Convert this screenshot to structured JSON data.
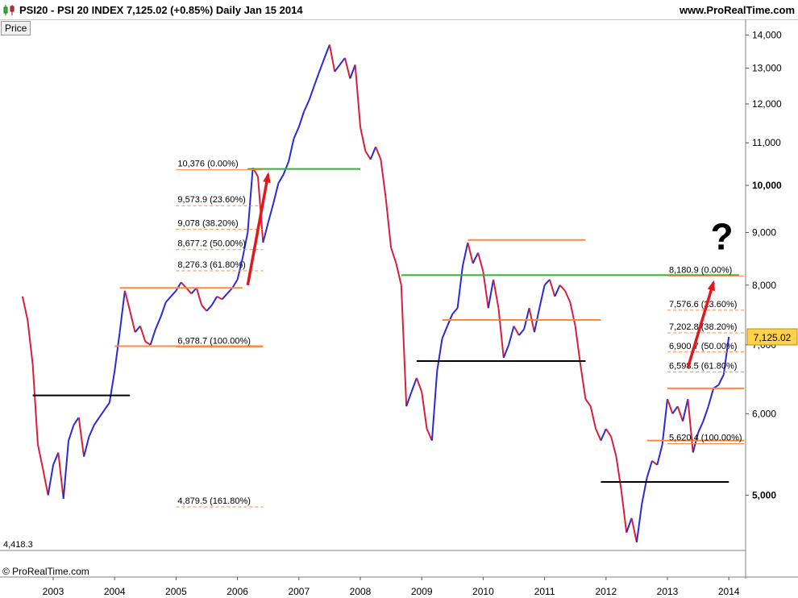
{
  "header": {
    "title": "PSI20 - PSI 20 INDEX    7,125.02 (+0.85%)    Daily   Jan 15 2014",
    "source": "www.ProRealTime.com",
    "icon": "candlestick-icon"
  },
  "price_tab": "Price",
  "footer": {
    "copyright": "© ProRealTime.com"
  },
  "colors": {
    "up": "#2a2ad8",
    "down": "#d81e3c",
    "fib": "#ff8a3d",
    "support": "#000000",
    "green_level": "#2fb52f",
    "arrow": "#e01a1a",
    "last_price_bg": "#ffd24a"
  },
  "chart_data": {
    "type": "line",
    "title": "PSI20 - PSI 20 INDEX",
    "xlabel": "",
    "ylabel": "",
    "y_scale": "log",
    "ylim": [
      4418.3,
      14500
    ],
    "x_ticks": [
      "2003",
      "2004",
      "2005",
      "2006",
      "2007",
      "2008",
      "2009",
      "2010",
      "2011",
      "2012",
      "2013",
      "2014"
    ],
    "y_ticks": [
      "14,000",
      "13,000",
      "12,000",
      "11,000",
      "10,000",
      "9,000",
      "8,000",
      "7,000",
      "6,000",
      "5,000"
    ],
    "bold_ticks": [
      "10,000",
      "5,000"
    ],
    "min_label": "4,418.3",
    "last_value": "7,125.02",
    "series": [
      {
        "values": [
          [
            "2002-07",
            7800
          ],
          [
            "2002-08",
            7400
          ],
          [
            "2002-09",
            6700
          ],
          [
            "2002-10",
            5600
          ],
          [
            "2002-11",
            5300
          ],
          [
            "2002-12",
            5000
          ],
          [
            "2003-01",
            5350
          ],
          [
            "2003-02",
            5500
          ],
          [
            "2003-03",
            4960
          ],
          [
            "2003-04",
            5650
          ],
          [
            "2003-05",
            5850
          ],
          [
            "2003-06",
            5950
          ],
          [
            "2003-07",
            5450
          ],
          [
            "2003-08",
            5700
          ],
          [
            "2003-09",
            5850
          ],
          [
            "2003-10",
            5950
          ],
          [
            "2003-11",
            6050
          ],
          [
            "2003-12",
            6150
          ],
          [
            "2004-01",
            6600
          ],
          [
            "2004-02",
            7200
          ],
          [
            "2004-03",
            7900
          ],
          [
            "2004-04",
            7550
          ],
          [
            "2004-05",
            7200
          ],
          [
            "2004-06",
            7300
          ],
          [
            "2004-07",
            7050
          ],
          [
            "2004-08",
            7000
          ],
          [
            "2004-09",
            7250
          ],
          [
            "2004-10",
            7450
          ],
          [
            "2004-11",
            7700
          ],
          [
            "2004-12",
            7800
          ],
          [
            "2005-01",
            7900
          ],
          [
            "2005-02",
            8050
          ],
          [
            "2005-03",
            7950
          ],
          [
            "2005-04",
            7850
          ],
          [
            "2005-05",
            7950
          ],
          [
            "2005-06",
            7650
          ],
          [
            "2005-07",
            7550
          ],
          [
            "2005-08",
            7650
          ],
          [
            "2005-09",
            7800
          ],
          [
            "2005-10",
            7750
          ],
          [
            "2005-11",
            7850
          ],
          [
            "2005-12",
            7950
          ],
          [
            "2006-01",
            8100
          ],
          [
            "2006-02",
            8500
          ],
          [
            "2006-03",
            9000
          ],
          [
            "2006-04",
            10400
          ],
          [
            "2006-05",
            10200
          ],
          [
            "2006-06",
            8800
          ],
          [
            "2006-07",
            9200
          ],
          [
            "2006-08",
            9600
          ],
          [
            "2006-09",
            10050
          ],
          [
            "2006-10",
            10250
          ],
          [
            "2006-11",
            10550
          ],
          [
            "2006-12",
            11100
          ],
          [
            "2007-01",
            11400
          ],
          [
            "2007-02",
            11800
          ],
          [
            "2007-03",
            12100
          ],
          [
            "2007-04",
            12500
          ],
          [
            "2007-05",
            12900
          ],
          [
            "2007-06",
            13300
          ],
          [
            "2007-07",
            13700
          ],
          [
            "2007-08",
            12900
          ],
          [
            "2007-09",
            13100
          ],
          [
            "2007-10",
            13300
          ],
          [
            "2007-11",
            12700
          ],
          [
            "2007-12",
            13100
          ],
          [
            "2008-01",
            11400
          ],
          [
            "2008-02",
            10800
          ],
          [
            "2008-03",
            10600
          ],
          [
            "2008-04",
            10900
          ],
          [
            "2008-05",
            10600
          ],
          [
            "2008-06",
            9700
          ],
          [
            "2008-07",
            8700
          ],
          [
            "2008-08",
            8400
          ],
          [
            "2008-09",
            8000
          ],
          [
            "2008-10",
            6100
          ],
          [
            "2008-11",
            6300
          ],
          [
            "2008-12",
            6500
          ],
          [
            "2009-01",
            6300
          ],
          [
            "2009-02",
            5800
          ],
          [
            "2009-03",
            5650
          ],
          [
            "2009-04",
            6600
          ],
          [
            "2009-05",
            7100
          ],
          [
            "2009-06",
            7300
          ],
          [
            "2009-07",
            7500
          ],
          [
            "2009-08",
            7600
          ],
          [
            "2009-09",
            8350
          ],
          [
            "2009-10",
            8800
          ],
          [
            "2009-11",
            8400
          ],
          [
            "2009-12",
            8600
          ],
          [
            "2010-01",
            8250
          ],
          [
            "2010-02",
            7600
          ],
          [
            "2010-03",
            8100
          ],
          [
            "2010-04",
            7600
          ],
          [
            "2010-05",
            6800
          ],
          [
            "2010-06",
            7000
          ],
          [
            "2010-07",
            7300
          ],
          [
            "2010-08",
            7150
          ],
          [
            "2010-09",
            7250
          ],
          [
            "2010-10",
            7600
          ],
          [
            "2010-11",
            7200
          ],
          [
            "2010-12",
            7600
          ],
          [
            "2011-01",
            8000
          ],
          [
            "2011-02",
            8100
          ],
          [
            "2011-03",
            7800
          ],
          [
            "2011-04",
            8000
          ],
          [
            "2011-05",
            7900
          ],
          [
            "2011-06",
            7700
          ],
          [
            "2011-07",
            7300
          ],
          [
            "2011-08",
            6700
          ],
          [
            "2011-09",
            6200
          ],
          [
            "2011-10",
            6100
          ],
          [
            "2011-11",
            5800
          ],
          [
            "2011-12",
            5650
          ],
          [
            "2012-01",
            5800
          ],
          [
            "2012-02",
            5700
          ],
          [
            "2012-03",
            5450
          ],
          [
            "2012-04",
            5050
          ],
          [
            "2012-05",
            4600
          ],
          [
            "2012-06",
            4750
          ],
          [
            "2012-07",
            4500
          ],
          [
            "2012-08",
            4900
          ],
          [
            "2012-09",
            5200
          ],
          [
            "2012-10",
            5400
          ],
          [
            "2012-11",
            5350
          ],
          [
            "2012-12",
            5600
          ],
          [
            "2013-01",
            6200
          ],
          [
            "2013-02",
            6000
          ],
          [
            "2013-03",
            6100
          ],
          [
            "2013-04",
            5900
          ],
          [
            "2013-05",
            6200
          ],
          [
            "2013-06",
            5500
          ],
          [
            "2013-07",
            5750
          ],
          [
            "2013-08",
            5900
          ],
          [
            "2013-09",
            6100
          ],
          [
            "2013-10",
            6350
          ],
          [
            "2013-11",
            6400
          ],
          [
            "2013-12",
            6550
          ],
          [
            "2014-01",
            7125.02
          ]
        ]
      }
    ],
    "hlines": [
      {
        "color": "support",
        "from": "2002-09",
        "to": "2004-04",
        "y": 6250
      },
      {
        "color": "fib",
        "from": "2004-02",
        "to": "2006-02",
        "y": 7950
      },
      {
        "color": "fib",
        "from": "2004-01",
        "to": "2006-06",
        "y": 6978.7
      },
      {
        "color": "green_level",
        "from": "2006-03",
        "to": "2008-01",
        "y": 10376
      },
      {
        "color": "fib",
        "from": "2009-10",
        "to": "2011-09",
        "y": 8850
      },
      {
        "color": "green_level",
        "from": "2008-09",
        "to": "2014-03",
        "y": 8180.9
      },
      {
        "color": "fib",
        "from": "2009-05",
        "to": "2011-12",
        "y": 7400
      },
      {
        "color": "support",
        "from": "2008-12",
        "to": "2011-09",
        "y": 6750
      },
      {
        "color": "support",
        "from": "2011-12",
        "to": "2014-01",
        "y": 5150
      },
      {
        "color": "fib",
        "from": "2013-01",
        "to": "2014-04",
        "y": 6350
      },
      {
        "color": "fib",
        "from": "2012-09",
        "to": "2014-04",
        "y": 5650
      }
    ],
    "fib_left": {
      "from": "2005-01",
      "to": "2006-06",
      "levels": [
        {
          "label": "10,376 (0.00%)",
          "y": 10376,
          "solid": true
        },
        {
          "label": "9,573.9 (23.60%)",
          "y": 9573.9
        },
        {
          "label": "9,078 (38.20%)",
          "y": 9078
        },
        {
          "label": "8,677.2 (50.00%)",
          "y": 8677.2
        },
        {
          "label": "8,276.3 (61.80%)",
          "y": 8276.3
        },
        {
          "label": "6,978.7 (100.00%)",
          "y": 6978.7,
          "solid": true
        },
        {
          "label": "4,879.5 (161.80%)",
          "y": 4879.5
        }
      ]
    },
    "fib_right": {
      "from": "2013-01",
      "to": "2014-04",
      "levels": [
        {
          "label": "8,180.9 (0.00%)",
          "y": 8180.9,
          "solid": true
        },
        {
          "label": "7,576.6 (23.60%)",
          "y": 7576.6
        },
        {
          "label": "7,202.8 (38.20%)",
          "y": 7202.8
        },
        {
          "label": "6,900.7 (50.00%)",
          "y": 6900.7
        },
        {
          "label": "6,598.5 (61.80%)",
          "y": 6598.5
        },
        {
          "label": "5,620.4 (100.00%)",
          "y": 5620.4,
          "solid": true
        }
      ]
    },
    "arrows": [
      {
        "from": [
          "2006-03",
          8000
        ],
        "to": [
          "2006-07",
          10250
        ]
      },
      {
        "from": [
          "2013-05",
          6650
        ],
        "to": [
          "2013-10",
          8050
        ]
      }
    ],
    "annotation": {
      "text": "?",
      "at": [
        "2013-11",
        8950
      ]
    }
  }
}
